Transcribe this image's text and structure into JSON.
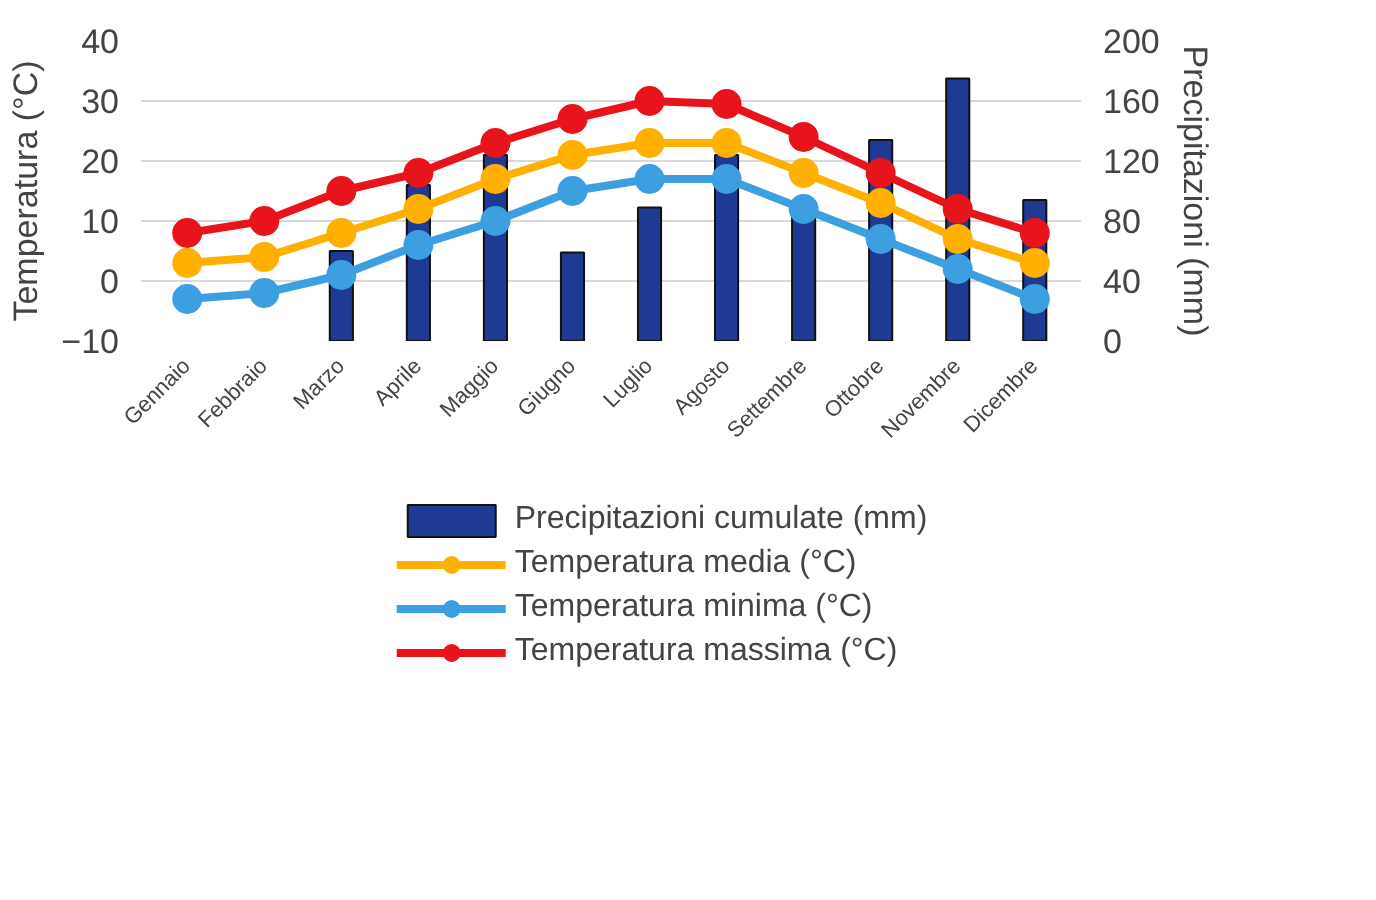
{
  "chart_data": {
    "type": "line",
    "categories": [
      "Gennaio",
      "Febbraio",
      "Marzo",
      "Aprile",
      "Maggio",
      "Giugno",
      "Luglio",
      "Agosto",
      "Settembre",
      "Ottobre",
      "Novembre",
      "Dicembre"
    ],
    "ylabel": "Temperatura (°C)",
    "y2label": "Precipitazioni (mm)",
    "ylim": [
      -10,
      40
    ],
    "yticks": [
      -10,
      0,
      10,
      20,
      30,
      40
    ],
    "y2lim": [
      0,
      200
    ],
    "y2ticks": [
      0,
      40,
      80,
      120,
      160,
      200
    ],
    "grid": "y",
    "legend": "bottom",
    "marker": "circle",
    "series": [
      {
        "name": "Precipitazioni cumulate (mm)",
        "type": "bar",
        "axis": "y2",
        "color": "#1f3a93",
        "values": [
          null,
          null,
          60,
          104,
          124,
          59,
          89,
          124,
          84,
          134,
          175,
          94
        ]
      },
      {
        "name": "Temperatura media (°C)",
        "color": "#ffb000",
        "values": [
          3,
          4,
          8,
          12,
          17,
          21,
          23,
          23,
          18,
          13,
          7,
          3
        ]
      },
      {
        "name": "Temperatura minima (°C)",
        "color": "#3d9ee0",
        "values": [
          -3,
          -2,
          1,
          6,
          10,
          15,
          17,
          17,
          12,
          7,
          2,
          -3
        ]
      },
      {
        "name": "Temperatura massima (°C)",
        "color": "#e8141c",
        "values": [
          8,
          10,
          15,
          18,
          23,
          27,
          30,
          29.5,
          24,
          18,
          12,
          8
        ]
      }
    ]
  }
}
